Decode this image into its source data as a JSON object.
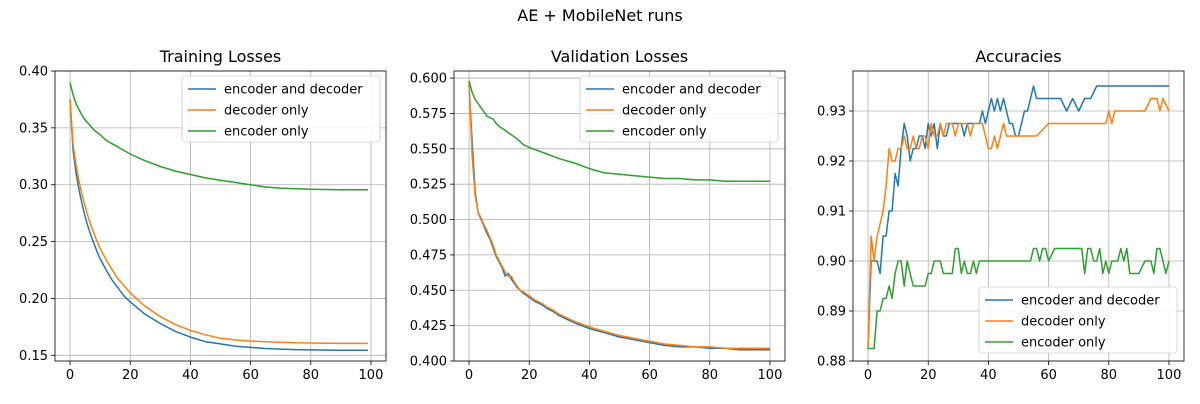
{
  "figure": {
    "suptitle": "AE + MobileNet runs"
  },
  "chart_data": [
    {
      "type": "line",
      "title": "Training Losses",
      "xlabel": "",
      "ylabel": "",
      "xlim": [
        -5,
        105
      ],
      "ylim": [
        0.145,
        0.4
      ],
      "xticks": [
        0,
        20,
        40,
        60,
        80,
        100
      ],
      "yticks": [
        0.15,
        0.2,
        0.25,
        0.3,
        0.35,
        0.4
      ],
      "ytick_labels": [
        "0.15",
        "0.20",
        "0.25",
        "0.30",
        "0.35",
        "0.40"
      ],
      "grid": true,
      "legend_position": "top-right",
      "series": [
        {
          "name": "encoder and decoder",
          "color": "#1f77b4",
          "x": [
            0,
            1,
            2,
            3,
            4,
            5,
            6,
            7,
            8,
            9,
            10,
            12,
            14,
            16,
            18,
            20,
            25,
            30,
            35,
            40,
            45,
            50,
            55,
            60,
            65,
            70,
            75,
            80,
            85,
            90,
            95,
            99
          ],
          "values": [
            0.375,
            0.33,
            0.31,
            0.295,
            0.283,
            0.272,
            0.263,
            0.255,
            0.248,
            0.241,
            0.235,
            0.225,
            0.216,
            0.209,
            0.202,
            0.197,
            0.186,
            0.178,
            0.171,
            0.166,
            0.162,
            0.16,
            0.158,
            0.157,
            0.156,
            0.1555,
            0.155,
            0.1548,
            0.1546,
            0.1545,
            0.1545,
            0.1545
          ]
        },
        {
          "name": "decoder only",
          "color": "#ff7f0e",
          "x": [
            0,
            1,
            2,
            3,
            4,
            5,
            6,
            7,
            8,
            9,
            10,
            12,
            14,
            16,
            18,
            20,
            25,
            30,
            35,
            40,
            45,
            50,
            55,
            60,
            65,
            70,
            75,
            80,
            85,
            90,
            95,
            99
          ],
          "values": [
            0.375,
            0.335,
            0.317,
            0.303,
            0.291,
            0.281,
            0.272,
            0.264,
            0.257,
            0.25,
            0.244,
            0.234,
            0.225,
            0.217,
            0.211,
            0.205,
            0.193,
            0.184,
            0.177,
            0.172,
            0.168,
            0.165,
            0.1635,
            0.1625,
            0.162,
            0.1615,
            0.161,
            0.1608,
            0.1606,
            0.1605,
            0.1605,
            0.1605
          ]
        },
        {
          "name": "encoder only",
          "color": "#2ca02c",
          "x": [
            0,
            1,
            2,
            3,
            4,
            5,
            6,
            7,
            8,
            9,
            10,
            12,
            14,
            16,
            18,
            20,
            25,
            30,
            35,
            40,
            45,
            50,
            55,
            60,
            65,
            70,
            75,
            80,
            85,
            90,
            95,
            99
          ],
          "values": [
            0.39,
            0.379,
            0.371,
            0.366,
            0.361,
            0.357,
            0.354,
            0.351,
            0.348,
            0.346,
            0.344,
            0.339,
            0.336,
            0.333,
            0.33,
            0.327,
            0.321,
            0.316,
            0.312,
            0.309,
            0.306,
            0.304,
            0.302,
            0.3,
            0.298,
            0.297,
            0.2965,
            0.296,
            0.2958,
            0.2956,
            0.2955,
            0.2955
          ]
        }
      ]
    },
    {
      "type": "line",
      "title": "Validation Losses",
      "xlabel": "",
      "ylabel": "",
      "xlim": [
        -5,
        105
      ],
      "ylim": [
        0.4,
        0.605
      ],
      "xticks": [
        0,
        20,
        40,
        60,
        80,
        100
      ],
      "yticks": [
        0.4,
        0.425,
        0.45,
        0.475,
        0.5,
        0.525,
        0.55,
        0.575,
        0.6
      ],
      "ytick_labels": [
        "0.400",
        "0.425",
        "0.450",
        "0.475",
        "0.500",
        "0.525",
        "0.550",
        "0.575",
        "0.600"
      ],
      "grid": true,
      "legend_position": "top-right",
      "series": [
        {
          "name": "encoder and decoder",
          "color": "#1f77b4",
          "x": [
            0,
            1,
            2,
            3,
            4,
            5,
            6,
            7,
            8,
            9,
            10,
            11,
            12,
            13,
            14,
            15,
            16,
            17,
            18,
            20,
            22,
            24,
            26,
            28,
            30,
            32,
            35,
            40,
            45,
            50,
            55,
            60,
            65,
            70,
            75,
            80,
            85,
            90,
            95,
            100
          ],
          "values": [
            0.595,
            0.555,
            0.52,
            0.505,
            0.5,
            0.495,
            0.49,
            0.486,
            0.48,
            0.474,
            0.47,
            0.466,
            0.46,
            0.462,
            0.458,
            0.455,
            0.452,
            0.45,
            0.448,
            0.445,
            0.442,
            0.44,
            0.437,
            0.435,
            0.432,
            0.43,
            0.427,
            0.423,
            0.42,
            0.417,
            0.415,
            0.413,
            0.411,
            0.41,
            0.41,
            0.409,
            0.409,
            0.408,
            0.408,
            0.408
          ]
        },
        {
          "name": "decoder only",
          "color": "#ff7f0e",
          "x": [
            0,
            1,
            2,
            3,
            4,
            5,
            6,
            7,
            8,
            9,
            10,
            11,
            12,
            13,
            14,
            15,
            16,
            17,
            18,
            20,
            22,
            24,
            26,
            28,
            30,
            32,
            35,
            40,
            45,
            50,
            55,
            60,
            65,
            70,
            75,
            80,
            85,
            90,
            95,
            100
          ],
          "values": [
            0.598,
            0.545,
            0.517,
            0.505,
            0.501,
            0.496,
            0.492,
            0.487,
            0.482,
            0.475,
            0.471,
            0.467,
            0.463,
            0.46,
            0.46,
            0.456,
            0.453,
            0.45,
            0.449,
            0.446,
            0.443,
            0.441,
            0.438,
            0.436,
            0.433,
            0.431,
            0.428,
            0.424,
            0.421,
            0.418,
            0.416,
            0.414,
            0.412,
            0.411,
            0.41,
            0.41,
            0.409,
            0.409,
            0.409,
            0.409
          ]
        },
        {
          "name": "encoder only",
          "color": "#2ca02c",
          "x": [
            0,
            1,
            2,
            3,
            4,
            5,
            6,
            7,
            8,
            9,
            10,
            12,
            14,
            16,
            18,
            20,
            25,
            30,
            35,
            40,
            45,
            50,
            55,
            60,
            65,
            70,
            75,
            80,
            85,
            90,
            95,
            100
          ],
          "values": [
            0.598,
            0.59,
            0.585,
            0.582,
            0.579,
            0.576,
            0.573,
            0.572,
            0.571,
            0.568,
            0.566,
            0.563,
            0.56,
            0.557,
            0.553,
            0.551,
            0.547,
            0.543,
            0.54,
            0.536,
            0.533,
            0.532,
            0.531,
            0.53,
            0.529,
            0.529,
            0.528,
            0.528,
            0.527,
            0.527,
            0.527,
            0.527
          ]
        }
      ]
    },
    {
      "type": "line",
      "title": "Accuracies",
      "xlabel": "",
      "ylabel": "",
      "xlim": [
        -5,
        105
      ],
      "ylim": [
        0.88,
        0.938
      ],
      "xticks": [
        0,
        20,
        40,
        60,
        80,
        100
      ],
      "yticks": [
        0.88,
        0.89,
        0.9,
        0.91,
        0.92,
        0.93
      ],
      "ytick_labels": [
        "0.88",
        "0.89",
        "0.90",
        "0.91",
        "0.92",
        "0.93"
      ],
      "grid": true,
      "legend_position": "bottom-right",
      "series": [
        {
          "name": "encoder and decoder",
          "color": "#1f77b4",
          "x": [
            0,
            1,
            2,
            3,
            4,
            5,
            6,
            7,
            8,
            9,
            10,
            11,
            12,
            13,
            14,
            15,
            16,
            17,
            18,
            19,
            20,
            21,
            22,
            23,
            24,
            25,
            26,
            27,
            28,
            29,
            30,
            31,
            32,
            33,
            34,
            35,
            36,
            37,
            38,
            39,
            40,
            41,
            42,
            43,
            44,
            45,
            46,
            47,
            48,
            49,
            50,
            51,
            52,
            53,
            54,
            55,
            56,
            57,
            58,
            59,
            60,
            62,
            64,
            66,
            68,
            70,
            72,
            74,
            76,
            78,
            80,
            85,
            90,
            95,
            100
          ],
          "values": [
            0.8825,
            0.9,
            0.9,
            0.9,
            0.8975,
            0.905,
            0.905,
            0.91,
            0.91,
            0.9175,
            0.915,
            0.9225,
            0.9275,
            0.925,
            0.92,
            0.9225,
            0.9225,
            0.925,
            0.925,
            0.9225,
            0.9275,
            0.925,
            0.9275,
            0.9225,
            0.9275,
            0.925,
            0.925,
            0.9275,
            0.9275,
            0.9275,
            0.9275,
            0.9275,
            0.925,
            0.9275,
            0.9275,
            0.9275,
            0.9275,
            0.9275,
            0.93,
            0.9275,
            0.93,
            0.9325,
            0.93,
            0.9325,
            0.93,
            0.9325,
            0.93,
            0.9275,
            0.9275,
            0.925,
            0.925,
            0.9275,
            0.93,
            0.93,
            0.9325,
            0.935,
            0.9325,
            0.9325,
            0.9325,
            0.9325,
            0.9325,
            0.9325,
            0.9325,
            0.93,
            0.9325,
            0.93,
            0.9325,
            0.9325,
            0.935,
            0.935,
            0.935,
            0.935,
            0.935,
            0.935,
            0.935
          ]
        },
        {
          "name": "decoder only",
          "color": "#ff7f0e",
          "x": [
            0,
            1,
            2,
            3,
            4,
            5,
            6,
            7,
            8,
            9,
            10,
            11,
            12,
            13,
            14,
            15,
            16,
            17,
            18,
            19,
            20,
            21,
            22,
            23,
            24,
            25,
            26,
            27,
            28,
            29,
            30,
            31,
            32,
            33,
            34,
            35,
            36,
            37,
            38,
            39,
            40,
            41,
            42,
            43,
            44,
            45,
            46,
            47,
            48,
            49,
            50,
            52,
            54,
            56,
            60,
            65,
            70,
            75,
            78,
            79,
            80,
            81,
            82,
            85,
            90,
            92,
            94,
            95,
            96,
            97,
            98,
            100
          ],
          "values": [
            0.8825,
            0.905,
            0.9,
            0.905,
            0.9075,
            0.91,
            0.915,
            0.9225,
            0.92,
            0.92,
            0.9225,
            0.9225,
            0.925,
            0.9225,
            0.9225,
            0.925,
            0.9225,
            0.9225,
            0.925,
            0.925,
            0.9225,
            0.9275,
            0.925,
            0.925,
            0.9275,
            0.925,
            0.9275,
            0.9275,
            0.9275,
            0.925,
            0.9275,
            0.9275,
            0.9275,
            0.9275,
            0.925,
            0.9275,
            0.9275,
            0.9275,
            0.9275,
            0.925,
            0.9225,
            0.9225,
            0.925,
            0.9225,
            0.925,
            0.9275,
            0.925,
            0.925,
            0.925,
            0.925,
            0.925,
            0.925,
            0.925,
            0.925,
            0.9275,
            0.9275,
            0.9275,
            0.9275,
            0.9275,
            0.9275,
            0.93,
            0.9275,
            0.93,
            0.93,
            0.93,
            0.93,
            0.9325,
            0.9325,
            0.9325,
            0.93,
            0.9325,
            0.93
          ]
        },
        {
          "name": "encoder only",
          "color": "#2ca02c",
          "x": [
            0,
            1,
            2,
            3,
            4,
            5,
            6,
            7,
            8,
            9,
            10,
            11,
            12,
            13,
            14,
            15,
            16,
            17,
            18,
            19,
            20,
            21,
            22,
            23,
            24,
            25,
            26,
            27,
            28,
            29,
            30,
            31,
            32,
            33,
            34,
            35,
            36,
            37,
            38,
            39,
            40,
            45,
            50,
            54,
            55,
            56,
            57,
            58,
            59,
            60,
            62,
            64,
            66,
            68,
            70,
            71,
            72,
            73,
            74,
            75,
            76,
            77,
            78,
            79,
            80,
            81,
            82,
            83,
            84,
            85,
            86,
            87,
            88,
            90,
            92,
            94,
            95,
            96,
            97,
            98,
            99,
            100
          ],
          "values": [
            0.8825,
            0.8825,
            0.8825,
            0.89,
            0.89,
            0.8925,
            0.8925,
            0.895,
            0.8925,
            0.8975,
            0.9,
            0.9,
            0.895,
            0.9,
            0.8975,
            0.895,
            0.895,
            0.895,
            0.895,
            0.895,
            0.8975,
            0.8975,
            0.9,
            0.9,
            0.9,
            0.8975,
            0.8975,
            0.8975,
            0.8975,
            0.9025,
            0.9025,
            0.8975,
            0.9,
            0.8975,
            0.8975,
            0.9,
            0.8975,
            0.9,
            0.9,
            0.9,
            0.9,
            0.9,
            0.9,
            0.9,
            0.9025,
            0.9025,
            0.9,
            0.9025,
            0.9025,
            0.9,
            0.9025,
            0.9025,
            0.9025,
            0.9025,
            0.9025,
            0.9025,
            0.8975,
            0.9025,
            0.9025,
            0.9,
            0.9,
            0.9025,
            0.8975,
            0.9,
            0.8975,
            0.9,
            0.9,
            0.9,
            0.9025,
            0.9,
            0.9025,
            0.8975,
            0.8975,
            0.8975,
            0.9,
            0.9,
            0.8975,
            0.9025,
            0.9025,
            0.9,
            0.8975,
            0.9
          ]
        }
      ]
    }
  ]
}
